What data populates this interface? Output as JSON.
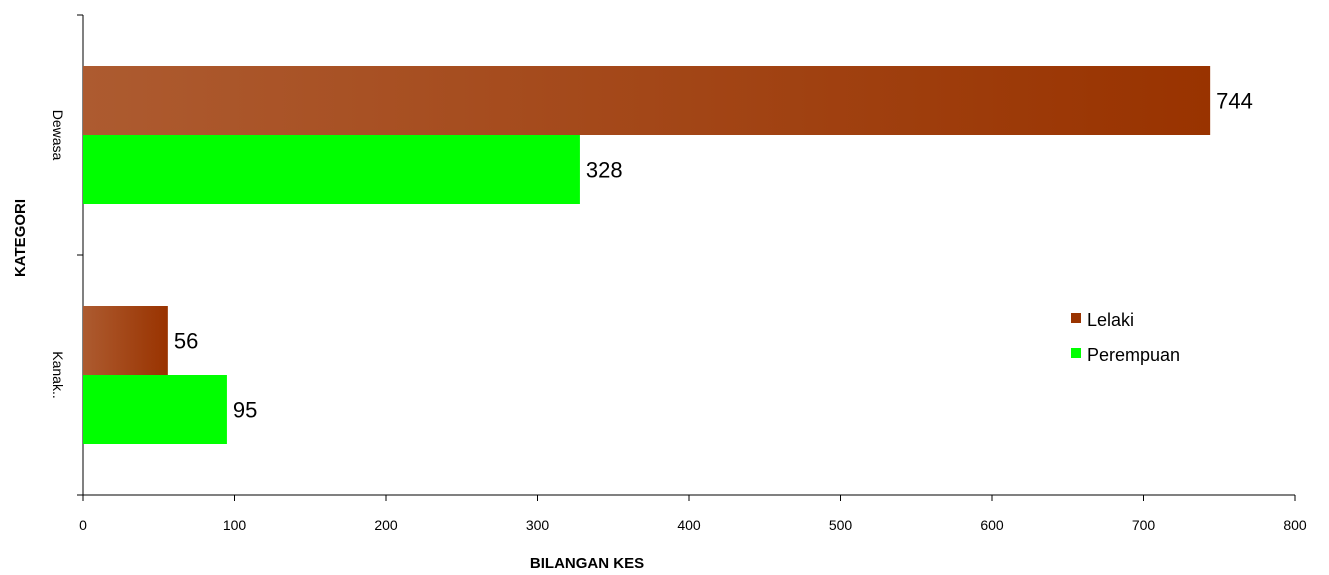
{
  "chart_data": {
    "type": "bar",
    "orientation": "horizontal",
    "categories": [
      "Dewasa",
      "Kanak.."
    ],
    "series": [
      {
        "name": "Lelaki",
        "values": [
          744,
          56
        ]
      },
      {
        "name": "Perempuan",
        "values": [
          328,
          95
        ]
      }
    ],
    "xlabel": "BILANGAN KES",
    "ylabel": "KATEGORI",
    "xlim": [
      0,
      800
    ],
    "xticks": [
      "0",
      "100",
      "200",
      "300",
      "400",
      "500",
      "600",
      "700",
      "800"
    ],
    "grid": false,
    "legend_position": "right",
    "data_labels": true
  },
  "colors": {
    "Lelaki_light": "#ad5b30",
    "Lelaki_dark": "#993300",
    "Perempuan": "#00ff00"
  }
}
